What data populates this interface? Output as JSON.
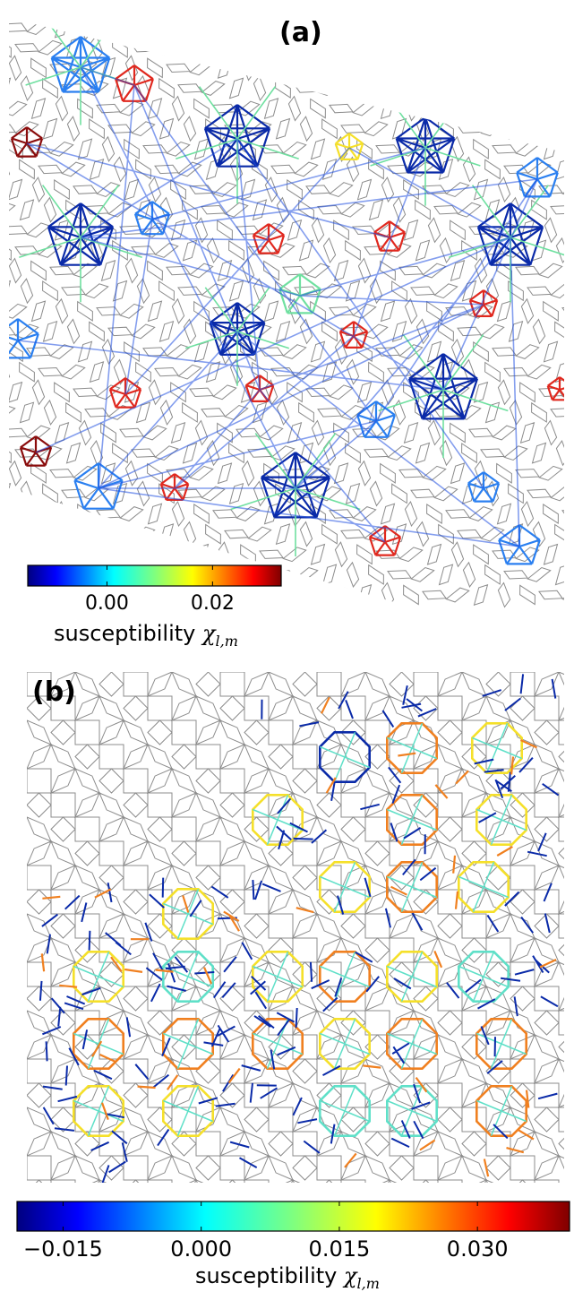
{
  "panels": [
    {
      "label": "(a)",
      "tiling": "penrose-rhombus",
      "colorbar": {
        "colormap": "jet",
        "range": [
          -0.015,
          0.033
        ],
        "ticks": [
          "0.00",
          "0.02"
        ],
        "tick_values": [
          0.0,
          0.02
        ],
        "label_text": "susceptibility ",
        "label_symbol": "χ",
        "label_subscript": "l,m"
      },
      "cluster_colors": [
        "#0a2aa8",
        "#2a7ff0",
        "#6fe0a0",
        "#f5e02a",
        "#e0281e",
        "#8a0c0c"
      ]
    },
    {
      "label": "(b)",
      "tiling": "ammann-beenker",
      "colorbar": {
        "colormap": "jet",
        "range": [
          -0.02,
          0.04
        ],
        "ticks": [
          "−0.015",
          "0.000",
          "0.015",
          "0.030"
        ],
        "tick_values": [
          -0.015,
          0.0,
          0.015,
          0.03
        ],
        "label_text": "susceptibility ",
        "label_symbol": "χ",
        "label_subscript": "l,m"
      },
      "cluster_colors": [
        "#0a2aa8",
        "#5fe0c8",
        "#f5e02a",
        "#f08020",
        "#8a0c0c"
      ]
    }
  ],
  "colors": {
    "tiling_edge": "#8c8c8c",
    "colorbar_border": "#000000"
  }
}
